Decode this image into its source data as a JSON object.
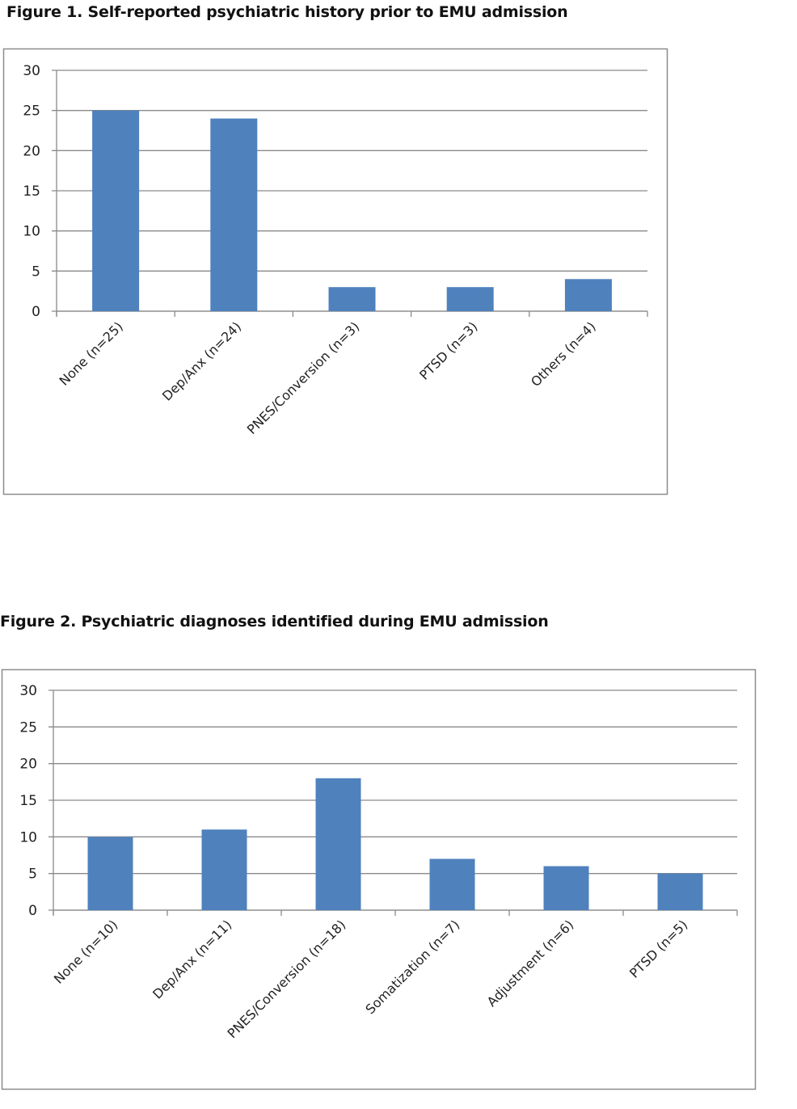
{
  "figures": [
    {
      "title": "Figure 1. Self-reported psychiatric history prior to EMU admission"
    },
    {
      "title": "Figure 2. Psychiatric diagnoses identified during EMU admission"
    }
  ],
  "chart_data": [
    {
      "type": "bar",
      "title": "Figure 1. Self-reported psychiatric history prior to EMU admission",
      "categories": [
        "None (n=25)",
        "Dep/Anx (n=24)",
        "PNES/Conversion (n=3)",
        "PTSD (n=3)",
        "Others (n=4)"
      ],
      "values": [
        25,
        24,
        3,
        3,
        4
      ],
      "xlabel": "",
      "ylabel": "",
      "ylim": [
        0,
        30
      ],
      "yticks": [
        "0",
        "5",
        "10",
        "15",
        "20",
        "25",
        "30"
      ],
      "grid": true,
      "legend": "none",
      "bar_color": "#4F81BD"
    },
    {
      "type": "bar",
      "title": "Figure 2. Psychiatric diagnoses identified during EMU admission",
      "categories": [
        "None (n=10)",
        "Dep/Anx (n=11)",
        "PNES/Conversion (n=18)",
        "Somatization (n=7)",
        "Adjustment (n=6)",
        "PTSD (n=5)"
      ],
      "values": [
        10,
        11,
        18,
        7,
        6,
        5
      ],
      "xlabel": "",
      "ylabel": "",
      "ylim": [
        0,
        30
      ],
      "yticks": [
        "0",
        "5",
        "10",
        "15",
        "20",
        "25",
        "30"
      ],
      "grid": true,
      "legend": "none",
      "bar_color": "#4F81BD"
    }
  ]
}
